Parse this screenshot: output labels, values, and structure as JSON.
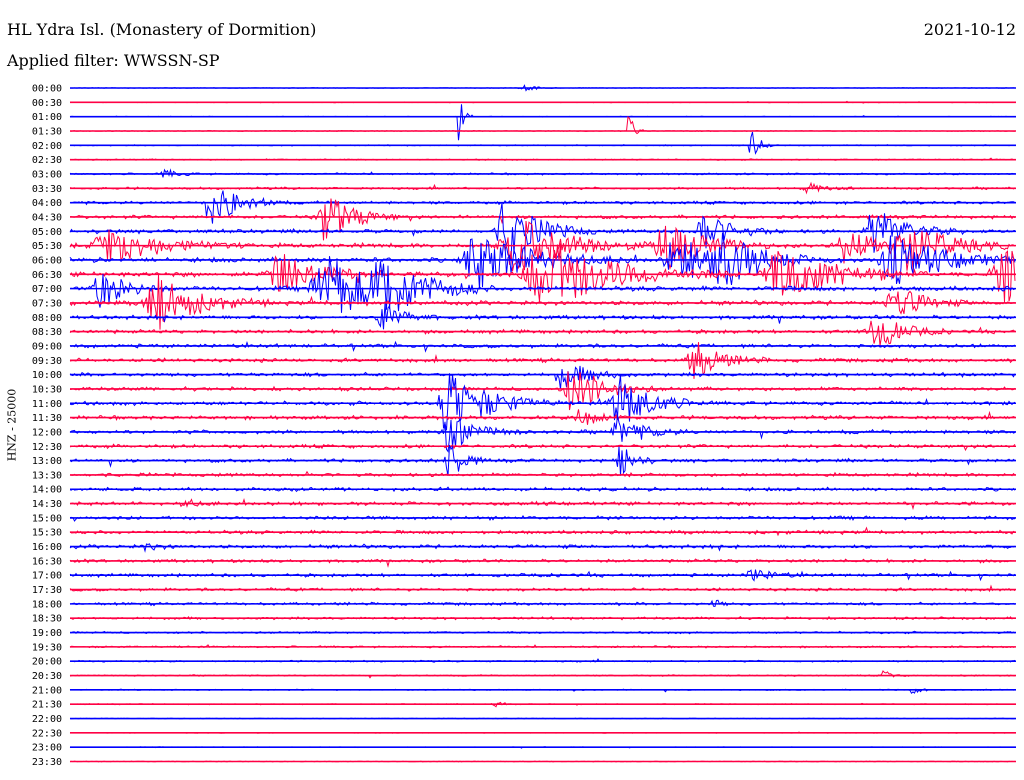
{
  "header": {
    "station": "HL Ydra Isl. (Monastery of Dormition)",
    "date": "2021-10-12",
    "filter": "Applied filter: WWSSN-SP"
  },
  "chart_data": {
    "type": "line",
    "title": "HL Ydra Isl. (Monastery of Dormition)",
    "ylabel": "HNZ - 25000",
    "xlabel": "",
    "colors": {
      "even_rows": "#0000ff",
      "odd_rows": "#ff0044"
    },
    "tick_labels": [
      "00:00",
      "00:30",
      "01:00",
      "01:30",
      "02:00",
      "02:30",
      "03:00",
      "03:30",
      "04:00",
      "04:30",
      "05:00",
      "05:30",
      "06:00",
      "06:30",
      "07:00",
      "07:30",
      "08:00",
      "08:30",
      "09:00",
      "09:30",
      "10:00",
      "10:30",
      "11:00",
      "11:30",
      "12:00",
      "12:30",
      "13:00",
      "13:30",
      "14:00",
      "14:30",
      "15:00",
      "15:30",
      "16:00",
      "16:30",
      "17:00",
      "17:30",
      "18:00",
      "18:30",
      "19:00",
      "19:30",
      "20:00",
      "20:30",
      "21:00",
      "21:30",
      "22:00",
      "22:30",
      "23:00",
      "23:30"
    ],
    "noise_level": [
      0.3,
      0.3,
      0.3,
      0.4,
      0.5,
      0.6,
      0.8,
      1.0,
      1.3,
      1.5,
      1.7,
      1.9,
      2.0,
      2.0,
      2.0,
      1.9,
      1.7,
      1.6,
      1.6,
      1.6,
      1.6,
      1.6,
      1.6,
      1.6,
      1.6,
      1.5,
      1.5,
      1.5,
      1.5,
      1.5,
      1.5,
      1.5,
      1.6,
      1.4,
      1.4,
      1.3,
      1.2,
      1.1,
      0.9,
      0.8,
      0.7,
      0.6,
      0.5,
      0.4,
      0.3,
      0.3,
      0.3,
      0.3
    ],
    "bursts": [
      {
        "row": 0,
        "x": 0.48,
        "amp": 3,
        "width": 0.005
      },
      {
        "row": 2,
        "x": 0.41,
        "amp": 30,
        "width": 0.002
      },
      {
        "row": 3,
        "x": 0.59,
        "amp": 25,
        "width": 0.002
      },
      {
        "row": 4,
        "x": 0.72,
        "amp": 20,
        "width": 0.003
      },
      {
        "row": 6,
        "x": 0.1,
        "amp": 5,
        "width": 0.005
      },
      {
        "row": 7,
        "x": 0.78,
        "amp": 6,
        "width": 0.006
      },
      {
        "row": 8,
        "x": 0.15,
        "amp": 25,
        "width": 0.01
      },
      {
        "row": 9,
        "x": 0.27,
        "amp": 30,
        "width": 0.01
      },
      {
        "row": 10,
        "x": 0.46,
        "amp": 35,
        "width": 0.012
      },
      {
        "row": 10,
        "x": 0.67,
        "amp": 20,
        "width": 0.01
      },
      {
        "row": 10,
        "x": 0.85,
        "amp": 25,
        "width": 0.012
      },
      {
        "row": 11,
        "x": 0.04,
        "amp": 20,
        "width": 0.02
      },
      {
        "row": 11,
        "x": 0.47,
        "amp": 30,
        "width": 0.02
      },
      {
        "row": 11,
        "x": 0.63,
        "amp": 25,
        "width": 0.015
      },
      {
        "row": 11,
        "x": 0.82,
        "amp": 20,
        "width": 0.01
      },
      {
        "row": 11,
        "x": 0.88,
        "amp": 30,
        "width": 0.015
      },
      {
        "row": 12,
        "x": 0.43,
        "amp": 30,
        "width": 0.02
      },
      {
        "row": 12,
        "x": 0.64,
        "amp": 25,
        "width": 0.015
      },
      {
        "row": 12,
        "x": 0.69,
        "amp": 25,
        "width": 0.015
      },
      {
        "row": 12,
        "x": 0.87,
        "amp": 25,
        "width": 0.02
      },
      {
        "row": 13,
        "x": 0.22,
        "amp": 25,
        "width": 0.015
      },
      {
        "row": 13,
        "x": 0.5,
        "amp": 40,
        "width": 0.025
      },
      {
        "row": 13,
        "x": 0.75,
        "amp": 30,
        "width": 0.02
      },
      {
        "row": 13,
        "x": 0.99,
        "amp": 30,
        "width": 0.02
      },
      {
        "row": 14,
        "x": 0.03,
        "amp": 20,
        "width": 0.01
      },
      {
        "row": 14,
        "x": 0.27,
        "amp": 35,
        "width": 0.02
      },
      {
        "row": 14,
        "x": 0.33,
        "amp": 25,
        "width": 0.015
      },
      {
        "row": 15,
        "x": 0.09,
        "amp": 30,
        "width": 0.015
      },
      {
        "row": 15,
        "x": 0.87,
        "amp": 20,
        "width": 0.01
      },
      {
        "row": 16,
        "x": 0.33,
        "amp": 15,
        "width": 0.008
      },
      {
        "row": 17,
        "x": 0.85,
        "amp": 20,
        "width": 0.01
      },
      {
        "row": 19,
        "x": 0.66,
        "amp": 20,
        "width": 0.01
      },
      {
        "row": 20,
        "x": 0.52,
        "amp": 15,
        "width": 0.01
      },
      {
        "row": 21,
        "x": 0.53,
        "amp": 25,
        "width": 0.012
      },
      {
        "row": 22,
        "x": 0.4,
        "amp": 35,
        "width": 0.015
      },
      {
        "row": 22,
        "x": 0.58,
        "amp": 30,
        "width": 0.012
      },
      {
        "row": 23,
        "x": 0.54,
        "amp": 10,
        "width": 0.008
      },
      {
        "row": 24,
        "x": 0.4,
        "amp": 20,
        "width": 0.01
      },
      {
        "row": 24,
        "x": 0.58,
        "amp": 15,
        "width": 0.01
      },
      {
        "row": 26,
        "x": 0.4,
        "amp": 25,
        "width": 0.005
      },
      {
        "row": 26,
        "x": 0.58,
        "amp": 20,
        "width": 0.005
      },
      {
        "row": 29,
        "x": 0.12,
        "amp": 5,
        "width": 0.005
      },
      {
        "row": 32,
        "x": 0.08,
        "amp": 4,
        "width": 0.005
      },
      {
        "row": 34,
        "x": 0.72,
        "amp": 7,
        "width": 0.008
      },
      {
        "row": 36,
        "x": 0.68,
        "amp": 8,
        "width": 0.002
      },
      {
        "row": 41,
        "x": 0.86,
        "amp": 6,
        "width": 0.003
      },
      {
        "row": 42,
        "x": 0.89,
        "amp": 5,
        "width": 0.003
      },
      {
        "row": 43,
        "x": 0.45,
        "amp": 3,
        "width": 0.004
      }
    ]
  }
}
